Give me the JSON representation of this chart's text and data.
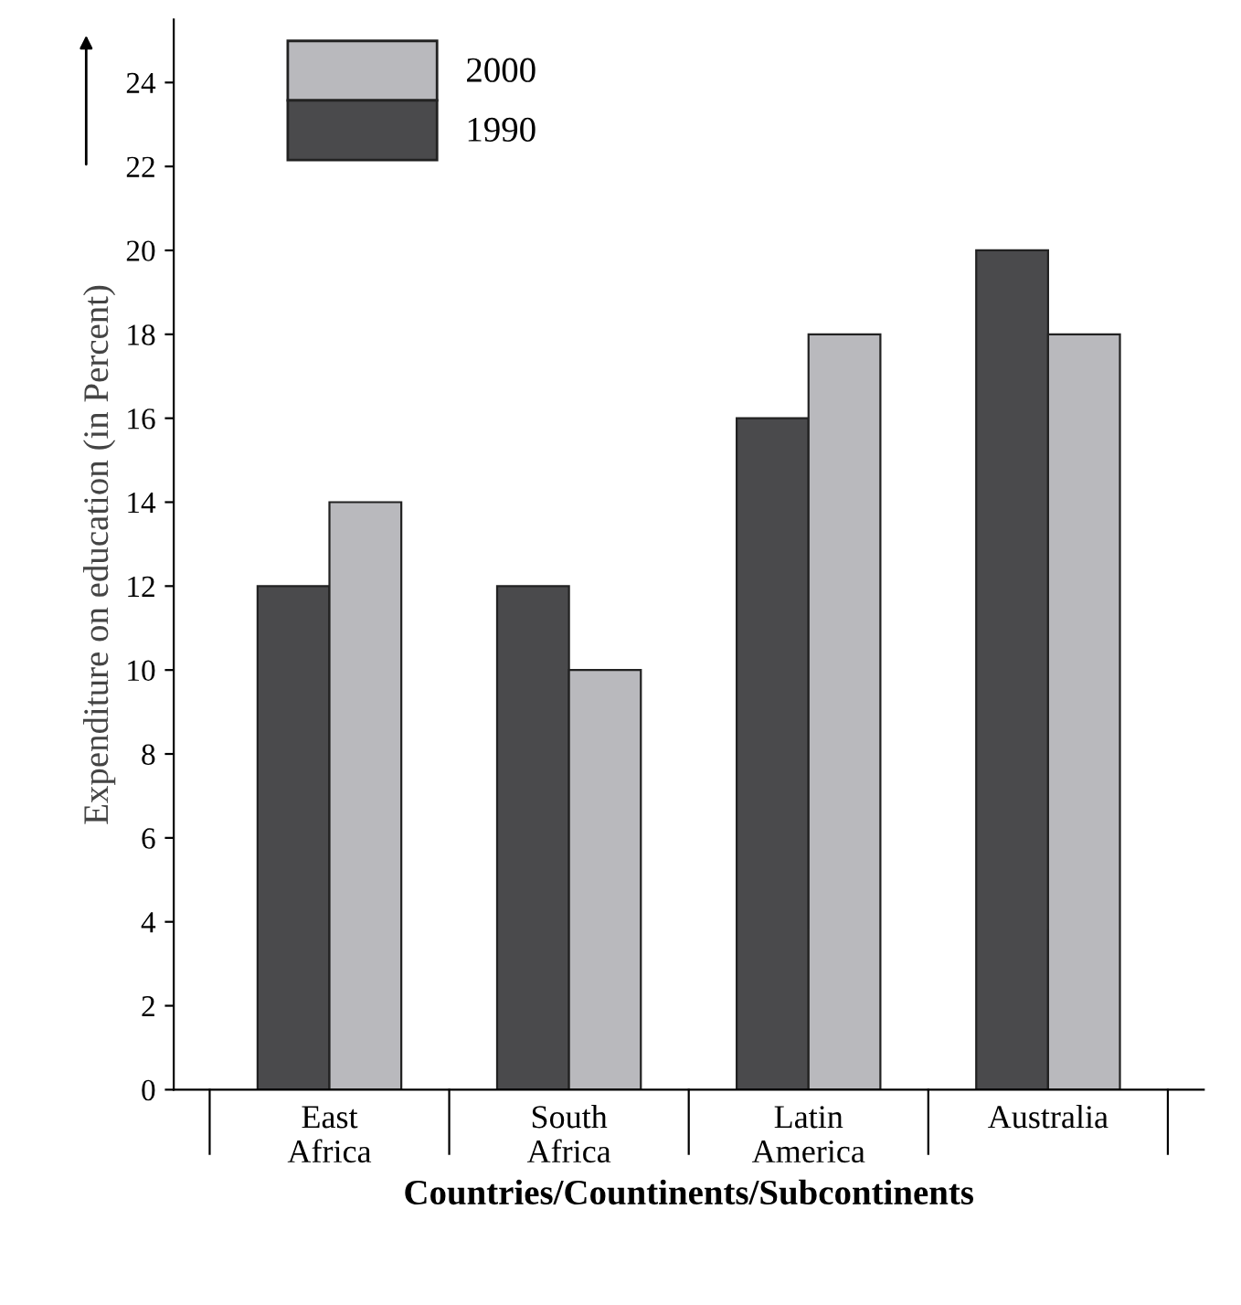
{
  "chart_data": {
    "type": "bar",
    "xlabel": "Countries/Countinents/Subcontinents",
    "ylabel": "Expenditure on education (in Percent)",
    "categories": [
      "East\nAfrica",
      "South\nAfrica",
      "Latin\nAmerica",
      "Australia"
    ],
    "series": [
      {
        "name": "1990",
        "color": "#4a4a4c",
        "values": [
          12,
          12,
          16,
          20
        ]
      },
      {
        "name": "2000",
        "color": "#b9b9bd",
        "values": [
          14,
          10,
          18,
          18
        ]
      }
    ],
    "ylim": [
      0,
      25.5
    ],
    "yticks": [
      0,
      2,
      4,
      6,
      8,
      10,
      12,
      14,
      16,
      18,
      20,
      22,
      24
    ],
    "grid": false,
    "legend": "top left"
  }
}
